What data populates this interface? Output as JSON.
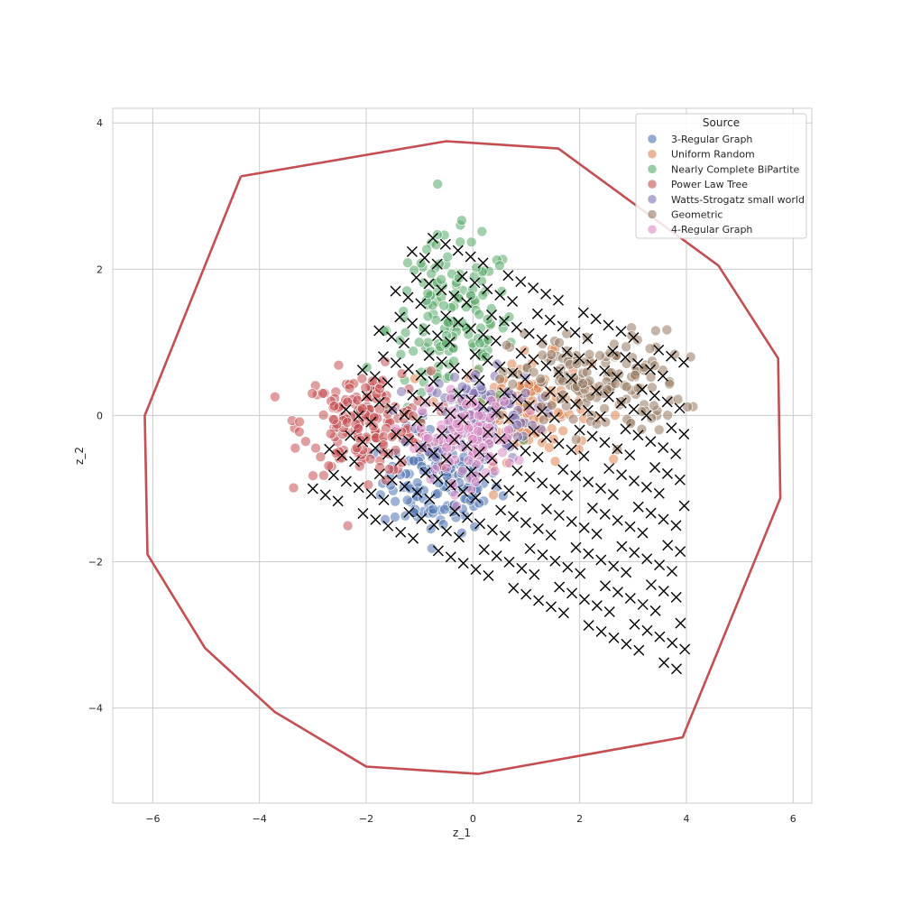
{
  "chart_data": {
    "type": "scatter",
    "xlabel": "z_1",
    "ylabel": "z_2",
    "xlim": [
      -6.75,
      6.35
    ],
    "ylim": [
      -5.3,
      4.2
    ],
    "grid": true,
    "x_ticks": [
      -6,
      -4,
      -2,
      0,
      2,
      4,
      6
    ],
    "x_tick_labels": [
      "−6",
      "−4",
      "−2",
      "0",
      "2",
      "4",
      "6"
    ],
    "y_ticks": [
      -4,
      -2,
      0,
      2,
      4
    ],
    "y_tick_labels": [
      "−4",
      "−2",
      "0",
      "2",
      "4"
    ],
    "legend": {
      "title": "Source",
      "placement": "top-right",
      "entries": [
        {
          "name": "3-Regular Graph",
          "color": "#4c72b0"
        },
        {
          "name": "Uniform Random",
          "color": "#dd8452"
        },
        {
          "name": "Nearly Complete BiPartite",
          "color": "#55a868"
        },
        {
          "name": "Power Law Tree",
          "color": "#c44e52"
        },
        {
          "name": "Watts-Strogatz small world",
          "color": "#8172b3"
        },
        {
          "name": "Geometric",
          "color": "#937860"
        },
        {
          "name": "4-Regular Graph",
          "color": "#da8bc3"
        }
      ]
    },
    "series": [
      {
        "name": "3-Regular Graph",
        "color": "#4c72b0",
        "center": [
          -0.6,
          -0.9
        ],
        "spread": [
          0.55,
          0.35
        ],
        "count": 150
      },
      {
        "name": "Uniform Random",
        "color": "#dd8452",
        "center": [
          1.0,
          0.1
        ],
        "spread": [
          0.6,
          0.35
        ],
        "count": 130
      },
      {
        "name": "Nearly Complete BiPartite",
        "color": "#55a868",
        "center": [
          -0.4,
          1.2
        ],
        "spread": [
          0.6,
          0.6
        ],
        "count": 160
      },
      {
        "name": "Power Law Tree",
        "color": "#c44e52",
        "center": [
          -2.0,
          -0.1
        ],
        "spread": [
          0.6,
          0.35
        ],
        "count": 190
      },
      {
        "name": "Watts-Strogatz small world",
        "color": "#8172b3",
        "center": [
          0.1,
          0.0
        ],
        "spread": [
          0.55,
          0.3
        ],
        "count": 140
      },
      {
        "name": "Geometric",
        "color": "#937860",
        "center": [
          2.3,
          0.45
        ],
        "spread": [
          0.8,
          0.35
        ],
        "count": 160
      },
      {
        "name": "4-Regular Graph",
        "color": "#da8bc3",
        "center": [
          -0.1,
          -0.3
        ],
        "spread": [
          0.45,
          0.3
        ],
        "count": 120
      }
    ],
    "grid_markers": {
      "marker": "x",
      "color": "#000000",
      "origin": [
        -3.0,
        -1.0
      ],
      "u_vector": [
        0.235,
        -0.085
      ],
      "v_vector": [
        0.155,
        0.27
      ],
      "u_count": 31,
      "v_count": 14
    },
    "boundary": {
      "color": "#c44e52",
      "points": [
        [
          -4.35,
          3.27
        ],
        [
          -0.5,
          3.75
        ],
        [
          1.6,
          3.65
        ],
        [
          4.6,
          2.05
        ],
        [
          5.72,
          0.78
        ],
        [
          5.76,
          -1.13
        ],
        [
          3.93,
          -4.4
        ],
        [
          0.1,
          -4.9
        ],
        [
          -2.0,
          -4.8
        ],
        [
          -3.72,
          -4.05
        ],
        [
          -5.02,
          -3.18
        ],
        [
          -6.1,
          -1.9
        ],
        [
          -6.15,
          0.0
        ],
        [
          -4.35,
          3.27
        ]
      ]
    }
  }
}
